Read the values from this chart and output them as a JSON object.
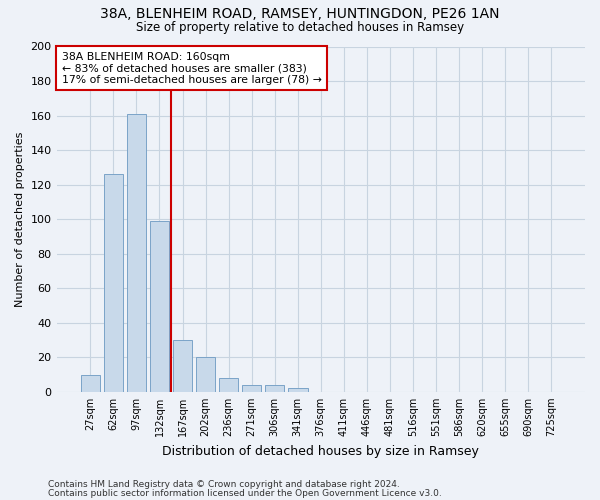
{
  "title_line1": "38A, BLENHEIM ROAD, RAMSEY, HUNTINGDON, PE26 1AN",
  "title_line2": "Size of property relative to detached houses in Ramsey",
  "xlabel": "Distribution of detached houses by size in Ramsey",
  "ylabel": "Number of detached properties",
  "bar_color": "#c8d9ea",
  "bar_edge_color": "#7ba3c8",
  "categories": [
    "27sqm",
    "62sqm",
    "97sqm",
    "132sqm",
    "167sqm",
    "202sqm",
    "236sqm",
    "271sqm",
    "306sqm",
    "341sqm",
    "376sqm",
    "411sqm",
    "446sqm",
    "481sqm",
    "516sqm",
    "551sqm",
    "586sqm",
    "620sqm",
    "655sqm",
    "690sqm",
    "725sqm"
  ],
  "values": [
    10,
    126,
    161,
    99,
    30,
    20,
    8,
    4,
    4,
    2,
    0,
    0,
    0,
    0,
    0,
    0,
    0,
    0,
    0,
    0,
    0
  ],
  "ylim": [
    0,
    200
  ],
  "yticks": [
    0,
    20,
    40,
    60,
    80,
    100,
    120,
    140,
    160,
    180,
    200
  ],
  "property_line_x": 3.5,
  "annotation_line1": "38A BLENHEIM ROAD: 160sqm",
  "annotation_line2": "← 83% of detached houses are smaller (383)",
  "annotation_line3": "17% of semi-detached houses are larger (78) →",
  "annotation_box_color": "#ffffff",
  "annotation_box_edge": "#cc0000",
  "footer_line1": "Contains HM Land Registry data © Crown copyright and database right 2024.",
  "footer_line2": "Contains public sector information licensed under the Open Government Licence v3.0.",
  "grid_color": "#c8d4e0",
  "property_line_color": "#cc0000",
  "background_color": "#eef2f8"
}
